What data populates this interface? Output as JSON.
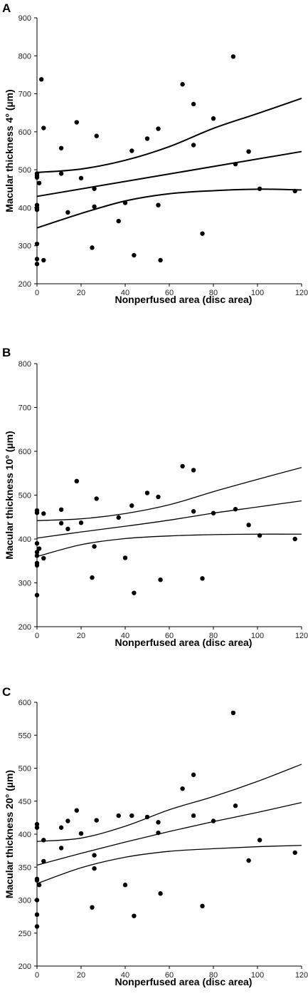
{
  "chart_data": [
    {
      "panel": "A",
      "type": "scatter",
      "xlabel": "Nonperfused area (disc area)",
      "ylabel": "Macular thickness 4° (µm)",
      "xlim": [
        0,
        120
      ],
      "ylim": [
        200,
        900
      ],
      "xticks": [
        0,
        20,
        40,
        60,
        80,
        100,
        120
      ],
      "yticks": [
        200,
        300,
        400,
        500,
        600,
        700,
        800,
        900
      ],
      "points": [
        [
          0,
          252
        ],
        [
          0,
          265
        ],
        [
          0,
          305
        ],
        [
          0,
          395
        ],
        [
          0,
          400
        ],
        [
          0,
          407
        ],
        [
          0,
          480
        ],
        [
          0,
          485
        ],
        [
          0,
          490
        ],
        [
          1,
          465
        ],
        [
          2,
          738
        ],
        [
          3,
          610
        ],
        [
          3,
          262
        ],
        [
          11,
          557
        ],
        [
          11,
          490
        ],
        [
          14,
          388
        ],
        [
          18,
          625
        ],
        [
          20,
          478
        ],
        [
          25,
          295
        ],
        [
          26,
          450
        ],
        [
          26,
          403
        ],
        [
          27,
          589
        ],
        [
          37,
          365
        ],
        [
          40,
          413
        ],
        [
          43,
          550
        ],
        [
          44,
          275
        ],
        [
          50,
          582
        ],
        [
          55,
          608
        ],
        [
          55,
          407
        ],
        [
          56,
          262
        ],
        [
          66,
          725
        ],
        [
          71,
          673
        ],
        [
          71,
          565
        ],
        [
          75,
          332
        ],
        [
          80,
          635
        ],
        [
          89,
          798
        ],
        [
          90,
          515
        ],
        [
          96,
          548
        ],
        [
          101,
          450
        ],
        [
          117,
          444
        ]
      ],
      "fit_line": [
        [
          0,
          430
        ],
        [
          120,
          548
        ]
      ],
      "upper_band": [
        [
          0,
          493
        ],
        [
          20,
          502
        ],
        [
          40,
          525
        ],
        [
          60,
          561
        ],
        [
          80,
          609
        ],
        [
          100,
          648
        ],
        [
          120,
          688
        ]
      ],
      "lower_band": [
        [
          0,
          347
        ],
        [
          20,
          385
        ],
        [
          40,
          418
        ],
        [
          60,
          437
        ],
        [
          80,
          445
        ],
        [
          100,
          449
        ],
        [
          120,
          447
        ]
      ]
    },
    {
      "panel": "B",
      "type": "scatter",
      "xlabel": "Nonperfused area (disc area)",
      "ylabel": "Macular thickness 10° (µm)",
      "xlim": [
        0,
        120
      ],
      "ylim": [
        200,
        800
      ],
      "xticks": [
        0,
        20,
        40,
        60,
        80,
        100,
        120
      ],
      "yticks": [
        200,
        300,
        400,
        500,
        600,
        700,
        800
      ],
      "points": [
        [
          0,
          272
        ],
        [
          0,
          340
        ],
        [
          0,
          345
        ],
        [
          0,
          362
        ],
        [
          0,
          370
        ],
        [
          0,
          390
        ],
        [
          0,
          460
        ],
        [
          0,
          465
        ],
        [
          1,
          378
        ],
        [
          3,
          458
        ],
        [
          3,
          356
        ],
        [
          11,
          467
        ],
        [
          11,
          436
        ],
        [
          14,
          423
        ],
        [
          18,
          532
        ],
        [
          20,
          437
        ],
        [
          25,
          312
        ],
        [
          26,
          383
        ],
        [
          27,
          492
        ],
        [
          37,
          449
        ],
        [
          40,
          357
        ],
        [
          43,
          476
        ],
        [
          44,
          277
        ],
        [
          50,
          505
        ],
        [
          55,
          496
        ],
        [
          56,
          307
        ],
        [
          66,
          566
        ],
        [
          71,
          557
        ],
        [
          71,
          463
        ],
        [
          75,
          310
        ],
        [
          80,
          459
        ],
        [
          90,
          468
        ],
        [
          96,
          432
        ],
        [
          101,
          408
        ],
        [
          117,
          400
        ]
      ],
      "fit_line": [
        [
          0,
          402
        ],
        [
          20,
          416
        ],
        [
          40,
          429
        ],
        [
          60,
          443
        ],
        [
          80,
          459
        ],
        [
          100,
          473
        ],
        [
          120,
          487
        ]
      ],
      "upper_band": [
        [
          0,
          442
        ],
        [
          20,
          446
        ],
        [
          40,
          458
        ],
        [
          60,
          478
        ],
        [
          80,
          508
        ],
        [
          100,
          536
        ],
        [
          120,
          563
        ]
      ],
      "lower_band": [
        [
          0,
          360
        ],
        [
          20,
          387
        ],
        [
          40,
          401
        ],
        [
          60,
          407
        ],
        [
          80,
          410
        ],
        [
          100,
          411
        ],
        [
          120,
          411
        ]
      ]
    },
    {
      "panel": "C",
      "type": "scatter",
      "xlabel": "Nonperfused area (disc area)",
      "ylabel": "Macular thickness 20° (µm)",
      "xlim": [
        0,
        120
      ],
      "ylim": [
        200,
        600
      ],
      "xticks": [
        0,
        20,
        40,
        60,
        80,
        100,
        120
      ],
      "yticks": [
        200,
        250,
        300,
        350,
        400,
        450,
        500,
        550,
        600
      ],
      "points": [
        [
          0,
          260
        ],
        [
          0,
          278
        ],
        [
          0,
          300
        ],
        [
          0,
          330
        ],
        [
          0,
          332
        ],
        [
          0,
          410
        ],
        [
          0,
          415
        ],
        [
          1,
          323
        ],
        [
          3,
          391
        ],
        [
          3,
          359
        ],
        [
          11,
          410
        ],
        [
          11,
          379
        ],
        [
          14,
          420
        ],
        [
          18,
          436
        ],
        [
          20,
          401
        ],
        [
          25,
          289
        ],
        [
          26,
          348
        ],
        [
          26,
          368
        ],
        [
          27,
          421
        ],
        [
          37,
          428
        ],
        [
          40,
          323
        ],
        [
          43,
          428
        ],
        [
          44,
          276
        ],
        [
          50,
          426
        ],
        [
          55,
          418
        ],
        [
          55,
          402
        ],
        [
          56,
          310
        ],
        [
          66,
          469
        ],
        [
          71,
          490
        ],
        [
          71,
          428
        ],
        [
          75,
          291
        ],
        [
          80,
          420
        ],
        [
          89,
          584
        ],
        [
          90,
          443
        ],
        [
          96,
          360
        ],
        [
          101,
          391
        ],
        [
          117,
          372
        ]
      ],
      "fit_line": [
        [
          0,
          353
        ],
        [
          20,
          371
        ],
        [
          40,
          388
        ],
        [
          60,
          404
        ],
        [
          80,
          419
        ],
        [
          100,
          433
        ],
        [
          120,
          448
        ]
      ],
      "upper_band": [
        [
          0,
          389
        ],
        [
          20,
          394
        ],
        [
          40,
          412
        ],
        [
          60,
          437
        ],
        [
          80,
          457
        ],
        [
          100,
          480
        ],
        [
          120,
          506
        ]
      ],
      "lower_band": [
        [
          0,
          325
        ],
        [
          20,
          349
        ],
        [
          40,
          365
        ],
        [
          60,
          374
        ],
        [
          80,
          378
        ],
        [
          100,
          381
        ],
        [
          120,
          383
        ]
      ]
    }
  ]
}
